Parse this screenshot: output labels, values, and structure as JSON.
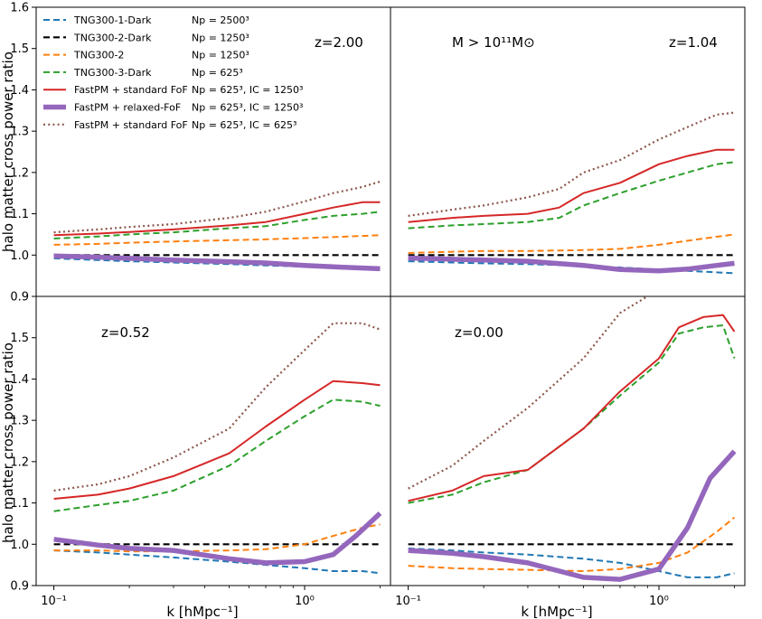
{
  "chart_data": {
    "type": "line",
    "layout": "2x2 panels sharing x and y axes",
    "xscale": "log",
    "xlim": [
      0.085,
      2.2
    ],
    "xticks": [
      {
        "value": 0.1,
        "label": "10⁻¹"
      },
      {
        "value": 1.0,
        "label": "10⁰"
      }
    ],
    "xlabel": "k [hMpc⁻¹]",
    "ylabel": "halo matter cross power ratio",
    "legend": {
      "placement": "top-left of first panel",
      "entries": [
        {
          "series": "tng300_1_dark",
          "label": "TNG300-1-Dark",
          "extra": "Np = 2500³"
        },
        {
          "series": "tng300_2_dark",
          "label": "TNG300-2-Dark",
          "extra": "Np = 1250³"
        },
        {
          "series": "tng300_2",
          "label": "TNG300-2",
          "extra": "Np = 1250³"
        },
        {
          "series": "tng300_3_dark",
          "label": "TNG300-3-Dark",
          "extra": "Np = 625³"
        },
        {
          "series": "fastpm_std_1250",
          "label": "FastPM + standard FoF",
          "extra": "Np = 625³, IC = 1250³"
        },
        {
          "series": "fastpm_relaxed",
          "label": "FastPM + relaxed-FoF",
          "extra": "Np = 625³, IC = 1250³"
        },
        {
          "series": "fastpm_std_625",
          "label": "FastPM + standard FoF",
          "extra": "Np = 625³, IC = 625³"
        }
      ]
    },
    "styles": {
      "tng300_1_dark": {
        "color": "#1f77b4",
        "dash": "dashed",
        "width": 2
      },
      "tng300_2_dark": {
        "color": "#000000",
        "dash": "dashed",
        "width": 2.2
      },
      "tng300_2": {
        "color": "#ff7f0e",
        "dash": "dashed",
        "width": 2
      },
      "tng300_3_dark": {
        "color": "#2ca02c",
        "dash": "dashed",
        "width": 2
      },
      "fastpm_std_1250": {
        "color": "#d62728",
        "dash": "solid",
        "width": 2
      },
      "fastpm_relaxed": {
        "color": "#9467bd",
        "dash": "solid",
        "width": 5.5
      },
      "fastpm_std_625": {
        "color": "#8c564b",
        "dash": "dotted",
        "width": 2.2
      }
    },
    "panels": [
      {
        "id": "z200",
        "annotations": [
          "z=2.00"
        ],
        "ylim": [
          0.9,
          1.6
        ],
        "yticks": [
          {
            "value": 0.9,
            "label": "0.9"
          },
          {
            "value": 1.0,
            "label": "1.0"
          },
          {
            "value": 1.1,
            "label": "1.1"
          },
          {
            "value": 1.2,
            "label": "1.2"
          },
          {
            "value": 1.3,
            "label": "1.3"
          },
          {
            "value": 1.4,
            "label": "1.4"
          },
          {
            "value": 1.5,
            "label": "1.5"
          },
          {
            "value": 1.6,
            "label": "1.6"
          }
        ],
        "series": [
          {
            "name": "tng300_1_dark",
            "x": [
              0.1,
              0.15,
              0.2,
              0.3,
              0.5,
              0.7,
              1.0,
              1.5,
              2.0
            ],
            "y": [
              0.992,
              0.988,
              0.985,
              0.982,
              0.978,
              0.975,
              0.972,
              0.968,
              0.965
            ]
          },
          {
            "name": "tng300_2_dark",
            "x": [
              0.1,
              2.0
            ],
            "y": [
              1.0,
              1.0
            ]
          },
          {
            "name": "tng300_2",
            "x": [
              0.1,
              0.15,
              0.2,
              0.3,
              0.5,
              0.7,
              1.0,
              1.5,
              2.0
            ],
            "y": [
              1.025,
              1.027,
              1.03,
              1.033,
              1.036,
              1.038,
              1.041,
              1.045,
              1.048
            ]
          },
          {
            "name": "tng300_3_dark",
            "x": [
              0.1,
              0.15,
              0.2,
              0.3,
              0.5,
              0.7,
              1.0,
              1.3,
              1.7,
              2.0
            ],
            "y": [
              1.04,
              1.045,
              1.05,
              1.055,
              1.065,
              1.07,
              1.085,
              1.095,
              1.1,
              1.105
            ]
          },
          {
            "name": "fastpm_std_1250",
            "x": [
              0.1,
              0.15,
              0.2,
              0.3,
              0.5,
              0.7,
              1.0,
              1.3,
              1.7,
              2.0
            ],
            "y": [
              1.048,
              1.052,
              1.056,
              1.062,
              1.072,
              1.08,
              1.1,
              1.115,
              1.128,
              1.128
            ]
          },
          {
            "name": "fastpm_relaxed",
            "x": [
              0.1,
              0.15,
              0.2,
              0.3,
              0.5,
              0.7,
              1.0,
              1.5,
              2.0
            ],
            "y": [
              0.998,
              0.995,
              0.992,
              0.988,
              0.984,
              0.981,
              0.975,
              0.97,
              0.967
            ]
          },
          {
            "name": "fastpm_std_625",
            "x": [
              0.1,
              0.15,
              0.2,
              0.3,
              0.5,
              0.7,
              1.0,
              1.3,
              1.7,
              2.0
            ],
            "y": [
              1.055,
              1.062,
              1.068,
              1.075,
              1.09,
              1.105,
              1.13,
              1.15,
              1.165,
              1.178
            ]
          }
        ]
      },
      {
        "id": "z104",
        "annotations": [
          "z=1.04",
          "M > 10¹¹M⊙"
        ],
        "ylim": [
          0.9,
          1.6
        ],
        "yticks": [],
        "series": [
          {
            "name": "tng300_1_dark",
            "x": [
              0.1,
              0.15,
              0.2,
              0.3,
              0.5,
              0.7,
              1.0,
              1.5,
              2.0
            ],
            "y": [
              0.985,
              0.982,
              0.98,
              0.978,
              0.974,
              0.97,
              0.965,
              0.96,
              0.956
            ]
          },
          {
            "name": "tng300_2_dark",
            "x": [
              0.1,
              2.0
            ],
            "y": [
              1.0,
              1.0
            ]
          },
          {
            "name": "tng300_2",
            "x": [
              0.1,
              0.15,
              0.2,
              0.3,
              0.5,
              0.7,
              1.0,
              1.5,
              2.0
            ],
            "y": [
              1.005,
              1.008,
              1.01,
              1.01,
              1.012,
              1.015,
              1.025,
              1.04,
              1.05
            ]
          },
          {
            "name": "tng300_3_dark",
            "x": [
              0.1,
              0.15,
              0.2,
              0.3,
              0.4,
              0.5,
              0.7,
              1.0,
              1.3,
              1.7,
              2.0
            ],
            "y": [
              1.065,
              1.072,
              1.075,
              1.08,
              1.09,
              1.12,
              1.15,
              1.18,
              1.2,
              1.22,
              1.225
            ]
          },
          {
            "name": "fastpm_std_1250",
            "x": [
              0.1,
              0.15,
              0.2,
              0.3,
              0.4,
              0.5,
              0.7,
              1.0,
              1.3,
              1.7,
              2.0
            ],
            "y": [
              1.08,
              1.09,
              1.095,
              1.1,
              1.115,
              1.15,
              1.175,
              1.22,
              1.24,
              1.255,
              1.255
            ]
          },
          {
            "name": "fastpm_relaxed",
            "x": [
              0.1,
              0.15,
              0.2,
              0.3,
              0.5,
              0.7,
              1.0,
              1.3,
              1.7,
              2.0
            ],
            "y": [
              0.993,
              0.99,
              0.988,
              0.985,
              0.975,
              0.965,
              0.962,
              0.966,
              0.975,
              0.98
            ]
          },
          {
            "name": "fastpm_std_625",
            "x": [
              0.1,
              0.15,
              0.2,
              0.3,
              0.4,
              0.5,
              0.7,
              1.0,
              1.3,
              1.7,
              2.0
            ],
            "y": [
              1.095,
              1.11,
              1.12,
              1.14,
              1.16,
              1.2,
              1.23,
              1.28,
              1.31,
              1.34,
              1.345
            ]
          }
        ]
      },
      {
        "id": "z052",
        "annotations": [
          "z=0.52"
        ],
        "ylim": [
          0.9,
          1.6
        ],
        "yticks": [
          {
            "value": 0.9,
            "label": "0.9"
          },
          {
            "value": 1.0,
            "label": "1.0"
          },
          {
            "value": 1.1,
            "label": "1.1"
          },
          {
            "value": 1.2,
            "label": "1.2"
          },
          {
            "value": 1.3,
            "label": "1.3"
          },
          {
            "value": 1.4,
            "label": "1.4"
          },
          {
            "value": 1.5,
            "label": "1.5"
          }
        ],
        "series": [
          {
            "name": "tng300_1_dark",
            "x": [
              0.1,
              0.15,
              0.2,
              0.3,
              0.5,
              0.7,
              1.0,
              1.3,
              1.7,
              2.0
            ],
            "y": [
              0.985,
              0.98,
              0.975,
              0.968,
              0.958,
              0.95,
              0.942,
              0.935,
              0.935,
              0.93
            ]
          },
          {
            "name": "tng300_2_dark",
            "x": [
              0.1,
              2.0
            ],
            "y": [
              1.0,
              1.0
            ]
          },
          {
            "name": "tng300_2",
            "x": [
              0.1,
              0.15,
              0.2,
              0.3,
              0.5,
              0.7,
              1.0,
              1.3,
              1.7,
              2.0
            ],
            "y": [
              0.985,
              0.985,
              0.983,
              0.983,
              0.985,
              0.988,
              1.0,
              1.02,
              1.04,
              1.048
            ]
          },
          {
            "name": "tng300_3_dark",
            "x": [
              0.1,
              0.15,
              0.2,
              0.3,
              0.5,
              0.7,
              1.0,
              1.3,
              1.7,
              2.0
            ],
            "y": [
              1.08,
              1.095,
              1.105,
              1.13,
              1.19,
              1.25,
              1.31,
              1.35,
              1.345,
              1.335
            ]
          },
          {
            "name": "fastpm_std_1250",
            "x": [
              0.1,
              0.15,
              0.2,
              0.3,
              0.5,
              0.7,
              1.0,
              1.3,
              1.7,
              2.0
            ],
            "y": [
              1.11,
              1.12,
              1.135,
              1.165,
              1.22,
              1.285,
              1.35,
              1.395,
              1.39,
              1.385
            ]
          },
          {
            "name": "fastpm_relaxed",
            "x": [
              0.1,
              0.15,
              0.2,
              0.3,
              0.5,
              0.7,
              1.0,
              1.3,
              1.6,
              2.0
            ],
            "y": [
              1.012,
              0.998,
              0.99,
              0.985,
              0.965,
              0.955,
              0.958,
              0.975,
              1.02,
              1.075
            ]
          },
          {
            "name": "fastpm_std_625",
            "x": [
              0.1,
              0.15,
              0.2,
              0.3,
              0.5,
              0.7,
              1.0,
              1.3,
              1.7,
              2.0
            ],
            "y": [
              1.13,
              1.145,
              1.165,
              1.21,
              1.28,
              1.38,
              1.47,
              1.535,
              1.535,
              1.52
            ]
          }
        ]
      },
      {
        "id": "z000",
        "annotations": [
          "z=0.00"
        ],
        "ylim": [
          0.9,
          1.6
        ],
        "yticks": [],
        "series": [
          {
            "name": "tng300_1_dark",
            "x": [
              0.1,
              0.15,
              0.2,
              0.3,
              0.5,
              0.7,
              1.0,
              1.3,
              1.7,
              2.0
            ],
            "y": [
              0.99,
              0.985,
              0.98,
              0.975,
              0.965,
              0.955,
              0.935,
              0.92,
              0.92,
              0.93
            ]
          },
          {
            "name": "tng300_2_dark",
            "x": [
              0.1,
              2.0
            ],
            "y": [
              1.0,
              1.0
            ]
          },
          {
            "name": "tng300_2",
            "x": [
              0.1,
              0.15,
              0.2,
              0.3,
              0.5,
              0.7,
              1.0,
              1.3,
              1.7,
              2.0
            ],
            "y": [
              0.948,
              0.942,
              0.94,
              0.938,
              0.935,
              0.94,
              0.955,
              0.98,
              1.03,
              1.065
            ]
          },
          {
            "name": "tng300_3_dark",
            "x": [
              0.1,
              0.15,
              0.2,
              0.3,
              0.5,
              0.7,
              1.0,
              1.2,
              1.5,
              1.8,
              2.0
            ],
            "y": [
              1.1,
              1.12,
              1.15,
              1.18,
              1.28,
              1.36,
              1.44,
              1.51,
              1.525,
              1.53,
              1.45
            ]
          },
          {
            "name": "fastpm_std_1250",
            "x": [
              0.1,
              0.15,
              0.2,
              0.3,
              0.5,
              0.7,
              1.0,
              1.2,
              1.5,
              1.8,
              2.0
            ],
            "y": [
              1.105,
              1.13,
              1.165,
              1.18,
              1.28,
              1.37,
              1.45,
              1.525,
              1.55,
              1.555,
              1.515
            ]
          },
          {
            "name": "fastpm_relaxed",
            "x": [
              0.1,
              0.15,
              0.2,
              0.3,
              0.5,
              0.7,
              1.0,
              1.3,
              1.6,
              2.0
            ],
            "y": [
              0.985,
              0.978,
              0.97,
              0.955,
              0.92,
              0.915,
              0.94,
              1.04,
              1.16,
              1.225
            ]
          },
          {
            "name": "fastpm_std_625",
            "x": [
              0.1,
              0.15,
              0.2,
              0.3,
              0.5,
              0.7,
              0.9
            ],
            "y": [
              1.135,
              1.19,
              1.25,
              1.33,
              1.45,
              1.56,
              1.6
            ]
          }
        ]
      }
    ]
  }
}
